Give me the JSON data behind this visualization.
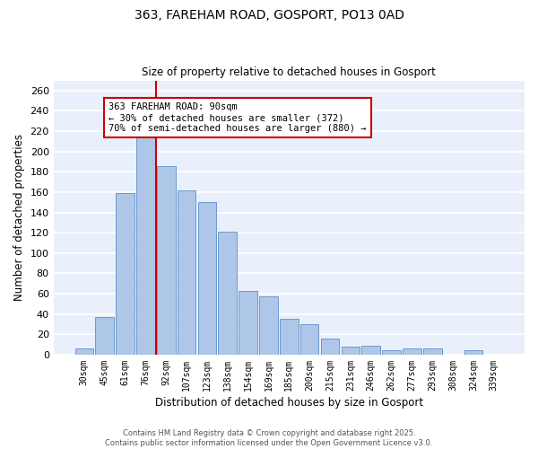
{
  "title_line1": "363, FAREHAM ROAD, GOSPORT, PO13 0AD",
  "title_line2": "Size of property relative to detached houses in Gosport",
  "xlabel": "Distribution of detached houses by size in Gosport",
  "ylabel": "Number of detached properties",
  "categories": [
    "30sqm",
    "45sqm",
    "61sqm",
    "76sqm",
    "92sqm",
    "107sqm",
    "123sqm",
    "138sqm",
    "154sqm",
    "169sqm",
    "185sqm",
    "200sqm",
    "215sqm",
    "231sqm",
    "246sqm",
    "262sqm",
    "277sqm",
    "293sqm",
    "308sqm",
    "324sqm",
    "339sqm"
  ],
  "values": [
    6,
    37,
    159,
    218,
    186,
    162,
    150,
    121,
    63,
    57,
    35,
    30,
    16,
    8,
    9,
    4,
    6,
    6,
    0,
    4,
    0
  ],
  "bar_color": "#aec6e8",
  "bar_edge_color": "#5b8fc9",
  "background_color": "#eaf0fb",
  "grid_color": "#ffffff",
  "vline_color": "#cc0000",
  "annotation_text": "363 FAREHAM ROAD: 90sqm\n← 30% of detached houses are smaller (372)\n70% of semi-detached houses are larger (880) →",
  "annotation_box_color": "#cc0000",
  "footer_line1": "Contains HM Land Registry data © Crown copyright and database right 2025.",
  "footer_line2": "Contains public sector information licensed under the Open Government Licence v3.0.",
  "ylim": [
    0,
    270
  ],
  "yticks": [
    0,
    20,
    40,
    60,
    80,
    100,
    120,
    140,
    160,
    180,
    200,
    220,
    240,
    260
  ],
  "vline_pos": 3.5
}
